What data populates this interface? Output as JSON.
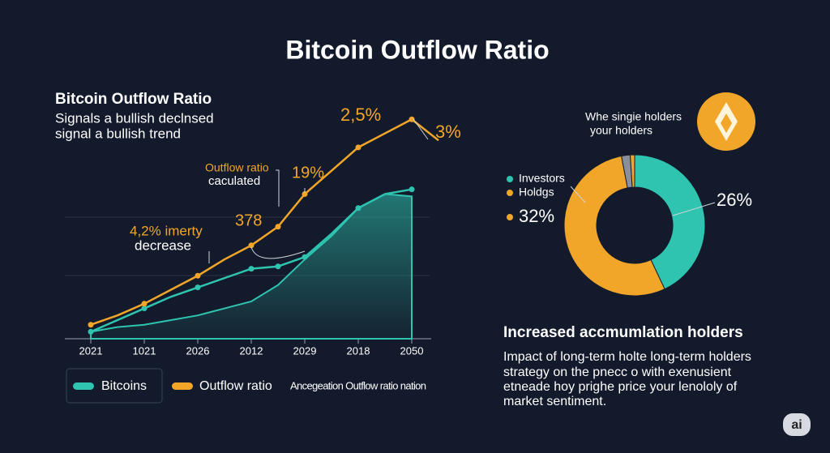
{
  "page_title": "Bitcoin Outflow Ratio",
  "chart_data": [
    {
      "type": "line",
      "title": "Bitcoin Outflow Ratio",
      "subtitle": [
        "Signals a bullish declnsed",
        "signal a bullish trend"
      ],
      "categories": [
        "2021",
        null,
        "1021",
        null,
        "2026",
        null,
        "2012",
        null,
        "2029",
        null,
        "2018",
        null,
        "2050",
        null
      ],
      "ylim": [
        0,
        100
      ],
      "series": [
        {
          "name": "Bitcoins",
          "color": "#2ec4b0",
          "values": [
            3,
            8,
            13,
            18,
            22,
            26,
            30,
            31,
            35,
            45,
            56,
            62,
            64,
            null
          ]
        },
        {
          "name": "Outflow ratio",
          "color": "#f2a629",
          "values": [
            6,
            10,
            15,
            21,
            27,
            34,
            40,
            48,
            62,
            72,
            82,
            88,
            94,
            85
          ]
        },
        {
          "name": "Ancegeation Outflow ratio nation",
          "color": "#2ec4b0",
          "area": true,
          "values": [
            3,
            5,
            6,
            8,
            10,
            13,
            16,
            23,
            34,
            44,
            56,
            62,
            61,
            null
          ]
        }
      ],
      "annotations": [
        "2,5%",
        "3%",
        "Outflow ratio",
        "caculated",
        "19%",
        "378",
        "4,2% imerty",
        "decrease"
      ]
    },
    {
      "type": "pie",
      "categories": [
        "Investors",
        "Holdgs",
        null,
        null
      ],
      "values": [
        43,
        54,
        2,
        1
      ],
      "colors": [
        "#2ec4b0",
        "#f2a629",
        "#8a8f9c",
        "#f2a629"
      ],
      "donut": true,
      "annotations": [
        "26%",
        "32%"
      ],
      "note": [
        "Whe singie holders",
        "your holders"
      ]
    }
  ],
  "section": {
    "heading": "Increased accmumlation holders",
    "body": [
      "Impact of long-term holte long-term holders",
      "strategy on the pnecc o with exenusient",
      "etneade hoy prighe price your lenololy of",
      "market sentiment."
    ]
  },
  "badge": "ai"
}
